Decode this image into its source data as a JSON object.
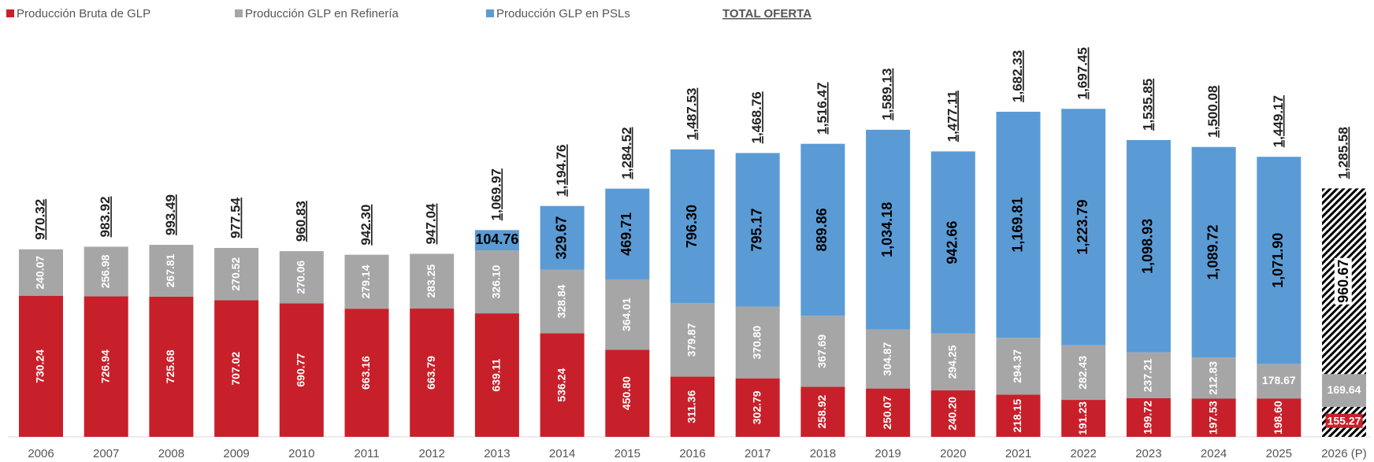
{
  "chart_data": {
    "type": "stacked_bar",
    "categories": [
      "2006",
      "2007",
      "2008",
      "2009",
      "2010",
      "2011",
      "2012",
      "2013",
      "2014",
      "2015",
      "2016",
      "2017",
      "2018",
      "2019",
      "2020",
      "2021",
      "2022",
      "2023",
      "2024",
      "2025",
      "2026 (P)"
    ],
    "series": [
      {
        "name": "Producción Bruta de GLP",
        "color": "#c8202a",
        "values": [
          730.24,
          726.94,
          725.68,
          707.02,
          690.77,
          663.16,
          663.79,
          639.11,
          536.24,
          450.8,
          311.36,
          302.79,
          258.92,
          250.07,
          240.2,
          218.15,
          191.23,
          199.72,
          197.53,
          198.6,
          155.27
        ],
        "value_labels": [
          "730.24",
          "726.94",
          "725.68",
          "707.02",
          "690.77",
          "663.16",
          "663.79",
          "639.11",
          "536.24",
          "450.80",
          "311.36",
          "302.79",
          "258.92",
          "250.07",
          "240.20",
          "218.15",
          "191.23",
          "199.72",
          "197.53",
          "198.60",
          "155.27"
        ]
      },
      {
        "name": "Producción GLP en Refinería",
        "color": "#a6a6a6",
        "values": [
          240.07,
          256.98,
          267.81,
          270.52,
          270.06,
          279.14,
          283.25,
          326.1,
          328.84,
          364.01,
          379.87,
          370.8,
          367.69,
          304.87,
          294.25,
          294.37,
          282.43,
          237.21,
          212.83,
          178.67,
          169.64
        ],
        "value_labels": [
          "240.07",
          "256.98",
          "267.81",
          "270.52",
          "270.06",
          "279.14",
          "283.25",
          "326.10",
          "328.84",
          "364.01",
          "379.87",
          "370.80",
          "367.69",
          "304.87",
          "294.25",
          "294.37",
          "282.43",
          "237.21",
          "212.83",
          "178.67",
          "169.64"
        ]
      },
      {
        "name": "Producción GLP en PSLs",
        "color": "#5b9bd5",
        "values": [
          null,
          null,
          null,
          null,
          null,
          null,
          null,
          104.76,
          329.67,
          469.71,
          796.3,
          795.17,
          889.86,
          1034.18,
          942.66,
          1169.81,
          1223.79,
          1098.93,
          1089.72,
          1071.9,
          960.67
        ],
        "value_labels": [
          null,
          null,
          null,
          null,
          null,
          null,
          null,
          "104.76",
          "329.67",
          "469.71",
          "796.30",
          "795.17",
          "889.86",
          "1,034.18",
          "942.66",
          "1,169.81",
          "1,223.79",
          "1,098.93",
          "1,089.72",
          "1,071.90",
          "960.67"
        ]
      }
    ],
    "totals": {
      "name": "TOTAL OFERTA",
      "values": [
        970.32,
        983.92,
        993.49,
        977.54,
        960.83,
        942.3,
        947.04,
        1069.97,
        1194.76,
        1284.52,
        1487.53,
        1468.76,
        1516.47,
        1589.13,
        1477.11,
        1682.33,
        1697.45,
        1535.85,
        1500.08,
        1449.17,
        1285.58
      ],
      "value_labels": [
        "970.32",
        "983.92",
        "993.49",
        "977.54",
        "960.83",
        "942.30",
        "947.04",
        "1,069.97",
        "1,194.76",
        "1,284.52",
        "1,487.53",
        "1,468.76",
        "1,516.47",
        "1,589.13",
        "1,477.11",
        "1,682.33",
        "1,697.45",
        "1,535.85",
        "1,500.08",
        "1,449.17",
        "1,285.58"
      ]
    }
  }
}
